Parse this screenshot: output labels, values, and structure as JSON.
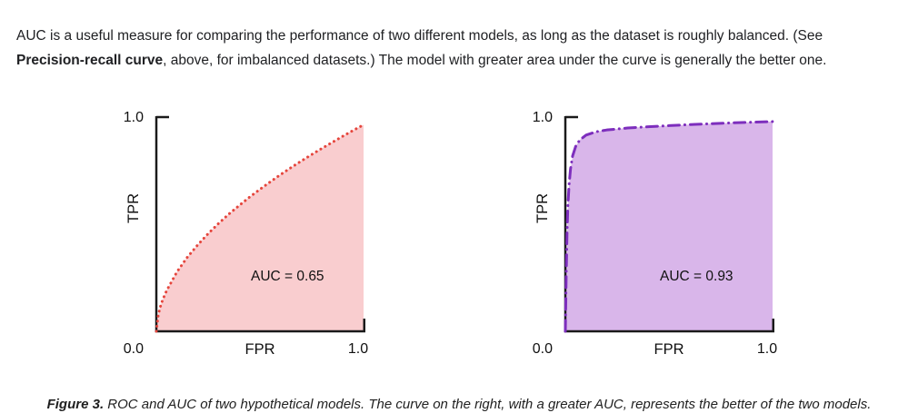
{
  "intro": {
    "line1": "AUC is a useful measure for comparing the performance of two different models, as long as the dataset is roughly balanced. (See",
    "bold": "Precision-recall curve",
    "line2": ", above, for imbalanced datasets.) The model with greater area under the curve is generally the better one."
  },
  "caption": {
    "label": "Figure 3.",
    "text": " ROC and AUC of two hypothetical models. The curve on the right, with a greater AUC, represents the better of the two models."
  },
  "chart_data": [
    {
      "type": "area",
      "title": "ROC curve of model with AUC 0.65",
      "xlabel": "FPR",
      "ylabel": "TPR",
      "xlim": [
        0,
        1
      ],
      "ylim": [
        0,
        1
      ],
      "y_top_label": "1.0",
      "origin_label": "0.0",
      "x_end_label": "1.0",
      "annotation": "AUC = 0.65",
      "auc": 0.65,
      "line_style": "dotted",
      "curve_color": "#e5453c",
      "fill_color": "#f9cdcf",
      "grid": false,
      "points": [
        [
          0,
          0
        ],
        [
          0.01,
          0.08
        ],
        [
          0.02,
          0.116
        ],
        [
          0.03,
          0.145
        ],
        [
          0.05,
          0.19
        ],
        [
          0.1,
          0.277
        ],
        [
          0.15,
          0.345
        ],
        [
          0.2,
          0.402
        ],
        [
          0.25,
          0.454
        ],
        [
          0.3,
          0.501
        ],
        [
          0.35,
          0.545
        ],
        [
          0.4,
          0.585
        ],
        [
          0.45,
          0.624
        ],
        [
          0.5,
          0.66
        ],
        [
          0.55,
          0.695
        ],
        [
          0.6,
          0.729
        ],
        [
          0.65,
          0.761
        ],
        [
          0.7,
          0.792
        ],
        [
          0.75,
          0.822
        ],
        [
          0.8,
          0.851
        ],
        [
          0.85,
          0.879
        ],
        [
          0.9,
          0.907
        ],
        [
          0.95,
          0.934
        ],
        [
          1,
          0.96
        ]
      ]
    },
    {
      "type": "area",
      "title": "ROC curve of model with AUC 0.93",
      "xlabel": "FPR",
      "ylabel": "TPR",
      "xlim": [
        0,
        1
      ],
      "ylim": [
        0,
        1
      ],
      "y_top_label": "1.0",
      "origin_label": "0.0",
      "x_end_label": "1.0",
      "annotation": "AUC = 0.93",
      "auc": 0.93,
      "line_style": "dashdot",
      "curve_color": "#7d2ebd",
      "fill_color": "#d9b6ea",
      "grid": false,
      "points": [
        [
          0,
          0
        ],
        [
          0.004,
          0.25
        ],
        [
          0.008,
          0.45
        ],
        [
          0.012,
          0.58
        ],
        [
          0.018,
          0.68
        ],
        [
          0.025,
          0.755
        ],
        [
          0.035,
          0.815
        ],
        [
          0.05,
          0.86
        ],
        [
          0.07,
          0.89
        ],
        [
          0.1,
          0.912
        ],
        [
          0.15,
          0.928
        ],
        [
          0.2,
          0.936
        ],
        [
          0.3,
          0.945
        ],
        [
          0.4,
          0.951
        ],
        [
          0.5,
          0.956
        ],
        [
          0.6,
          0.961
        ],
        [
          0.7,
          0.965
        ],
        [
          0.8,
          0.969
        ],
        [
          0.9,
          0.972
        ],
        [
          1,
          0.975
        ]
      ]
    }
  ]
}
